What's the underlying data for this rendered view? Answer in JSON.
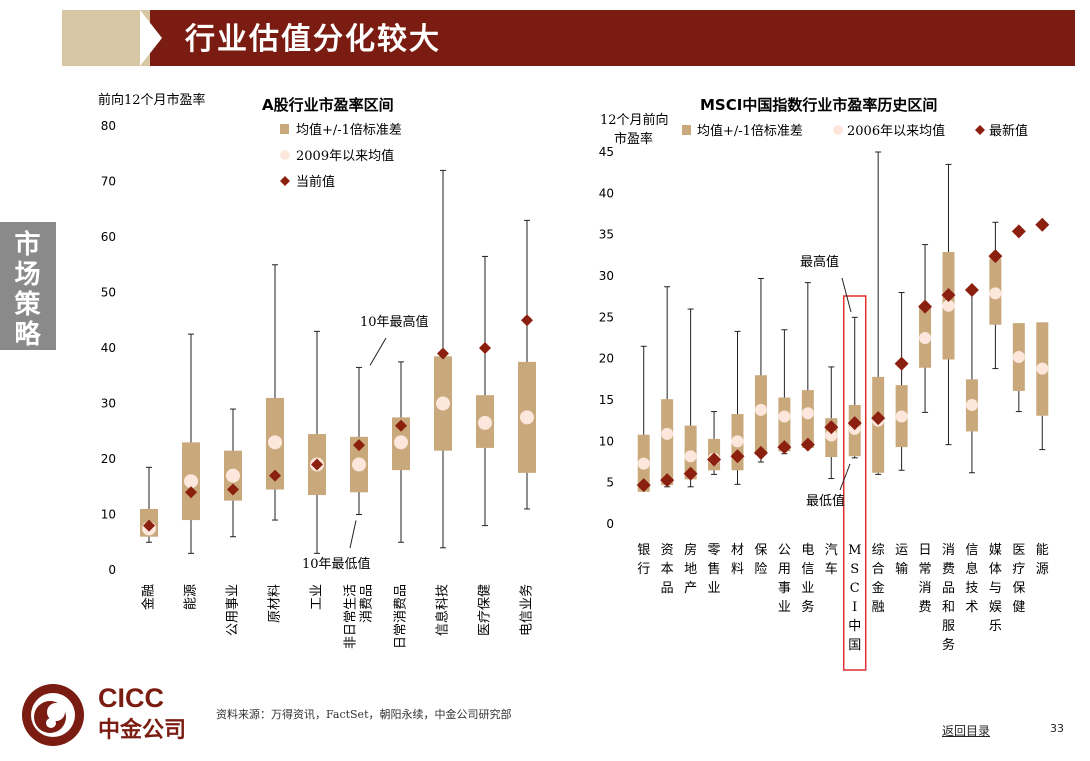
{
  "title": "行业估值分化较大",
  "side_tab": "市场策略",
  "logo": {
    "en": "CICC",
    "cn": "中金公司"
  },
  "source": "资料来源：万得资讯，FactSet，朝阳永续，中金公司研究部",
  "back_link": "返回目录",
  "page_number": "33",
  "colors": {
    "band": "#c9a97c",
    "avg": "#fde7dc",
    "current": "#8b2010",
    "header": "#7a1c12",
    "highlight": "#e03030"
  },
  "chart_data": [
    {
      "type": "box",
      "title": "A股行业市盈率区间",
      "ylabel": "前向12个月市盈率",
      "ylim": [
        0,
        80
      ],
      "yticks": [
        0,
        10,
        20,
        30,
        40,
        50,
        60,
        70,
        80
      ],
      "legend": [
        "均值+/-1倍标准差",
        "2009年以来均值",
        "当前值"
      ],
      "annotations": [
        "10年最高值",
        "10年最低值"
      ],
      "categories": [
        "金融",
        "能源",
        "公用事业",
        "原材料",
        "工业",
        "非日常生活消费品",
        "日常消费品",
        "信息科技",
        "医疗保健",
        "电信业务"
      ],
      "category_lines": [
        [
          "金融"
        ],
        [
          "能源"
        ],
        [
          "公用事业"
        ],
        [
          "原材料"
        ],
        [
          "工业"
        ],
        [
          "非日常生活",
          "消费品"
        ],
        [
          "日常消费品"
        ],
        [
          "信息科技"
        ],
        [
          "医疗保健"
        ],
        [
          "电信业务"
        ]
      ],
      "max": [
        18.5,
        42.5,
        29,
        55,
        43,
        36.5,
        37.5,
        72,
        56.5,
        63
      ],
      "min": [
        5,
        3,
        6,
        9,
        3,
        10,
        5,
        4,
        8,
        11
      ],
      "band_high": [
        11,
        23,
        21.5,
        31,
        24.5,
        24,
        27.5,
        38.5,
        31.5,
        37.5
      ],
      "band_low": [
        6,
        9,
        12.5,
        14.5,
        13.5,
        14,
        18,
        21.5,
        22,
        17.5
      ],
      "average": [
        7.5,
        16,
        17,
        23,
        19,
        19,
        23,
        30,
        26.5,
        27.5
      ],
      "current": [
        8,
        14,
        14.5,
        17,
        19,
        22.5,
        26,
        39,
        40,
        45
      ]
    },
    {
      "type": "box",
      "title": "MSCI中国指数行业市盈率历史区间",
      "ylabel": "12个月前向市盈率",
      "ylabel_lines": [
        "12个月前向",
        "市盈率"
      ],
      "ylim": [
        0,
        45
      ],
      "yticks": [
        0,
        5,
        10,
        15,
        20,
        25,
        30,
        35,
        40,
        45
      ],
      "legend": [
        "均值+/-1倍标准差",
        "2006年以来均值",
        "最新值"
      ],
      "annotations": [
        "最高值",
        "最低值"
      ],
      "highlight": "MSCI中国",
      "categories": [
        "银行",
        "资本品",
        "房地产",
        "零售业",
        "材料",
        "保险",
        "公用事业",
        "电信业务",
        "汽车",
        "MSCI中国",
        "综合金融",
        "运输",
        "日常消费",
        "消费品和服务",
        "信息技术",
        "媒体与娱乐",
        "医疗保健",
        "能源"
      ],
      "category_lines": [
        [
          "银行"
        ],
        [
          "资本品"
        ],
        [
          "房地产"
        ],
        [
          "零售业"
        ],
        [
          "材料"
        ],
        [
          "保险"
        ],
        [
          "公用事业"
        ],
        [
          "电信业务"
        ],
        [
          "汽车"
        ],
        [
          "M",
          "S",
          "C",
          "I",
          "中",
          "国"
        ],
        [
          "综合金融"
        ],
        [
          "运输"
        ],
        [
          "日常消费"
        ],
        [
          "消费品和服务"
        ],
        [
          "信息技术"
        ],
        [
          "媒体与娱乐"
        ],
        [
          "医疗保健"
        ],
        [
          "能源"
        ]
      ],
      "max": [
        21.5,
        28.7,
        26,
        13.6,
        23.3,
        29.7,
        23.5,
        29.2,
        19,
        25,
        45,
        28,
        33.8,
        43.5,
        28.4,
        36.5,
        null,
        null
      ],
      "min": [
        4,
        4.5,
        4.5,
        6,
        4.8,
        7.5,
        8.5,
        9.5,
        5.5,
        8,
        6,
        6.5,
        13.5,
        9.6,
        6.2,
        18.8,
        13.6,
        9
      ],
      "band_high": [
        10.8,
        15.1,
        11.9,
        10.3,
        13.3,
        18,
        15.3,
        16.2,
        12.8,
        14.4,
        17.8,
        16.8,
        26.4,
        32.9,
        17.5,
        32.1,
        24.3,
        24.4
      ],
      "band_low": [
        3.9,
        4.7,
        5.4,
        6.5,
        6.5,
        8.4,
        8.8,
        9.2,
        8.1,
        8.2,
        6.2,
        9.3,
        18.9,
        19.9,
        11.2,
        24.1,
        16.1,
        13.1
      ],
      "average": [
        7.3,
        10.9,
        8.2,
        7.9,
        10,
        13.8,
        13,
        13.4,
        10.7,
        11.5,
        12.5,
        13,
        22.5,
        26.4,
        14.4,
        27.9,
        20.2,
        18.8
      ],
      "current": [
        4.7,
        5.3,
        6.1,
        7.8,
        8.2,
        8.6,
        9.3,
        9.6,
        11.7,
        12.2,
        12.8,
        19.4,
        26.3,
        27.7,
        28.3,
        32.4,
        35.4,
        36.2
      ]
    }
  ]
}
